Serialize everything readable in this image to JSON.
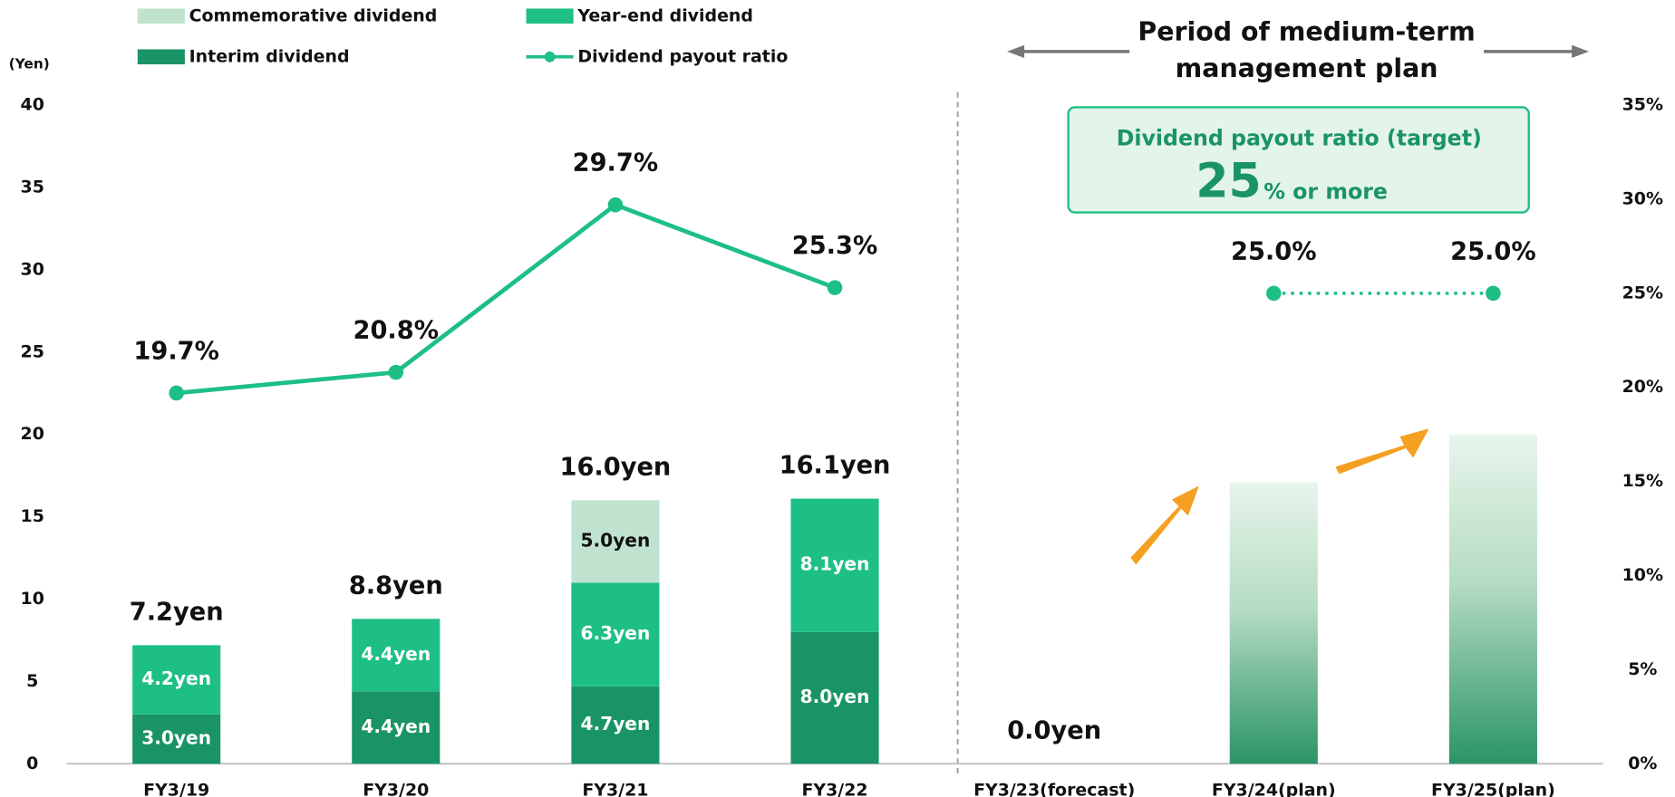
{
  "chart_data": {
    "type": "bar",
    "stacked": true,
    "ylabel": "(Yen)",
    "categories": [
      "FY3/19",
      "FY3/20",
      "FY3/21",
      "FY3/22",
      "FY3/23(forecast)",
      "FY3/24(plan)",
      "FY3/25(plan)"
    ],
    "series": [
      {
        "name": "Interim dividend",
        "color": "#1a9466",
        "label_color": "#ffffff",
        "values": [
          3.0,
          4.4,
          4.7,
          8.0,
          null,
          null,
          null
        ],
        "value_labels": [
          "3.0yen",
          "4.4yen",
          "4.7yen",
          "8.0yen",
          null,
          null,
          null
        ]
      },
      {
        "name": "Year-end dividend",
        "color": "#1dbf85",
        "label_color": "#ffffff",
        "values": [
          4.2,
          4.4,
          6.3,
          8.1,
          null,
          null,
          null
        ],
        "value_labels": [
          "4.2yen",
          "4.4yen",
          "6.3yen",
          "8.1yen",
          null,
          null,
          null
        ]
      },
      {
        "name": "Commemorative dividend",
        "color": "#bfe3cf",
        "label_color": "#111111",
        "values": [
          null,
          null,
          5.0,
          null,
          null,
          null,
          null
        ],
        "value_labels": [
          null,
          null,
          "5.0yen",
          null,
          null,
          null,
          null
        ]
      },
      {
        "color": "gradient",
        "values": [
          null,
          null,
          null,
          null,
          null,
          17.1,
          20.0
        ]
      },
      {
        "name": "Dividend payout ratio",
        "type": "line",
        "axis": "y2",
        "color": "#1dbf85",
        "piece_styles": [
          "solid",
          "dotted"
        ],
        "values": [
          19.7,
          20.8,
          29.7,
          25.3,
          null,
          25.0,
          25.0
        ],
        "value_labels": [
          "19.7%",
          "20.8%",
          "29.7%",
          "25.3%",
          null,
          "25.0%",
          "25.0%"
        ]
      }
    ],
    "totals": [
      7.2,
      8.8,
      16.0,
      16.1,
      0.0,
      null,
      null
    ],
    "totals_labels": [
      "7.2yen",
      "8.8yen",
      "16.0yen",
      "16.1yen",
      "0.0yen",
      null,
      null
    ],
    "ylim": [
      0,
      40
    ],
    "yticks": [
      0,
      5,
      10,
      15,
      20,
      25,
      30,
      35,
      40
    ],
    "y2lim": [
      0,
      35
    ],
    "y2ticks": [
      {
        "value": 0,
        "label": "0%"
      },
      {
        "value": 5,
        "label": "5%"
      },
      {
        "value": 10,
        "label": "10%"
      },
      {
        "value": 15,
        "label": "15%"
      },
      {
        "value": 20,
        "label": "20%"
      },
      {
        "value": 25,
        "label": "25%"
      },
      {
        "value": 30,
        "label": "30%"
      },
      {
        "value": 35,
        "label": "35%"
      }
    ],
    "annotations": {
      "period": [
        "Period of medium-term",
        "management plan"
      ],
      "target_title": "Dividend payout ratio (target)",
      "target_number": "25",
      "target_suffix": "% or more"
    }
  }
}
